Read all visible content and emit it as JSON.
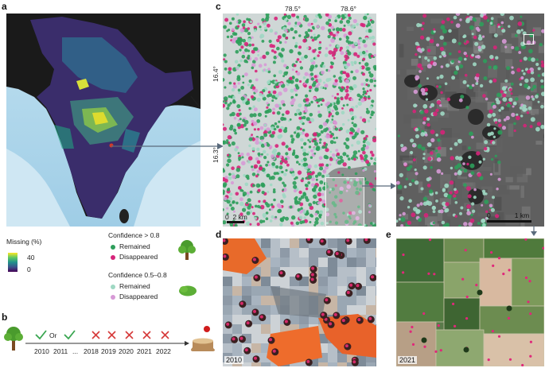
{
  "panels": {
    "a": "a",
    "b": "b",
    "c": "c",
    "d": "d",
    "e": "e"
  },
  "legend": {
    "missing_title": "Missing (%)",
    "missing_max": "40",
    "missing_min": "0",
    "conf_high_title": "Confidence > 0.8",
    "conf_high_remained": "Remained",
    "conf_high_disappeared": "Disappeared",
    "conf_mid_title": "Confidence 0.5–0.8",
    "conf_mid_remained": "Remained",
    "conf_mid_disappeared": "Disappeared",
    "colors": {
      "high_remained": "#2e9e5b",
      "high_disappeared": "#d6247a",
      "mid_remained": "#9fd8c3",
      "mid_disappeared": "#d79ad6"
    }
  },
  "timeline": {
    "years": [
      "2010",
      "Or",
      "2011",
      "...",
      "2018",
      "2019",
      "2020",
      "2021",
      "2022"
    ],
    "marks": [
      "check",
      "",
      "check",
      "",
      "cross",
      "cross",
      "cross",
      "cross",
      "cross"
    ]
  },
  "panel_c": {
    "lon_labels": [
      "78.5°",
      "78.6°"
    ],
    "lat_labels": [
      "16.4°",
      "16.3°"
    ],
    "scale_left": "0",
    "scale_left_end": "2 km",
    "scale_right": "0",
    "scale_right_end": "1 km"
  },
  "panel_d": {
    "year": "2010"
  },
  "panel_e": {
    "year": "2021"
  }
}
